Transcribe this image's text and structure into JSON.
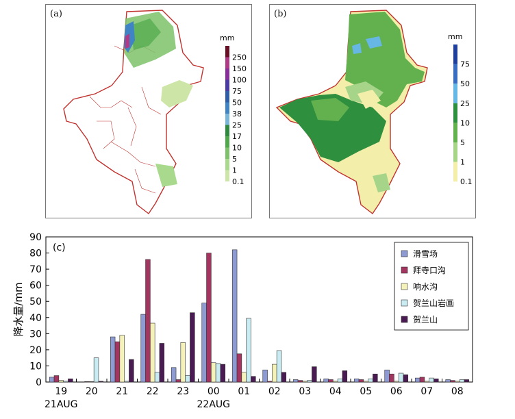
{
  "panels": {
    "a": {
      "label": "(a)",
      "unit": "mm",
      "levels": [
        "250",
        "150",
        "100",
        "75",
        "50",
        "38",
        "25",
        "17",
        "10",
        "5",
        "1",
        "0.1"
      ],
      "colors": [
        "#6b0f24",
        "#b03a86",
        "#8a2e9e",
        "#4a3aa6",
        "#2e5ea8",
        "#3f84c4",
        "#79b6d9",
        "#2e8a3c",
        "#4fa84a",
        "#7cc26a",
        "#a9d98c",
        "#cde6a8"
      ]
    },
    "b": {
      "label": "(b)",
      "unit": "mm",
      "levels": [
        "75",
        "50",
        "25",
        "10",
        "5",
        "1",
        "0.1"
      ],
      "colors": [
        "#1f3f9a",
        "#3a6cc0",
        "#66b7e3",
        "#2e8f3e",
        "#63b04e",
        "#a6d58a",
        "#f3efaa"
      ]
    }
  },
  "chart_data": {
    "type": "bar",
    "label": "(c)",
    "ylabel": "降水量/mm",
    "ylim": [
      0,
      90
    ],
    "yticks": [
      0,
      10,
      20,
      30,
      40,
      50,
      60,
      70,
      80,
      90
    ],
    "categories": [
      "19",
      "20",
      "21",
      "22",
      "23",
      "00",
      "01",
      "02",
      "03",
      "04",
      "05",
      "06",
      "07",
      "08"
    ],
    "date_labels": [
      {
        "text": "21AUG",
        "index": 0
      },
      {
        "text": "22AUG",
        "index": 5
      }
    ],
    "series": [
      {
        "name": "滑雪场",
        "color": "#8e9bd2",
        "values": [
          3,
          0,
          28,
          42,
          9,
          49,
          82,
          7.5,
          1.5,
          2,
          2,
          7.5,
          2.5,
          1.5
        ]
      },
      {
        "name": "拜寺口沟",
        "color": "#a33560",
        "values": [
          4,
          0.3,
          25,
          76,
          1.5,
          80,
          17.5,
          0.5,
          1,
          1.5,
          1.5,
          5,
          3,
          1
        ]
      },
      {
        "name": "响水沟",
        "color": "#f4f2b8",
        "values": [
          1,
          0.3,
          29,
          36.5,
          24.5,
          12,
          6,
          11,
          0.5,
          0.5,
          0.5,
          0.5,
          0.5,
          0.5
        ]
      },
      {
        "name": "贺兰山岩画",
        "color": "#c9ecf2",
        "values": [
          0.5,
          15,
          0.5,
          6,
          4,
          11.5,
          39.5,
          19.5,
          1,
          2,
          2,
          5.5,
          2.5,
          1.5
        ]
      },
      {
        "name": "贺兰山",
        "color": "#4a1a52",
        "values": [
          2,
          0.5,
          14,
          24,
          43,
          11,
          3.5,
          6,
          9.5,
          7,
          5,
          4.5,
          2,
          1.5
        ]
      }
    ]
  }
}
